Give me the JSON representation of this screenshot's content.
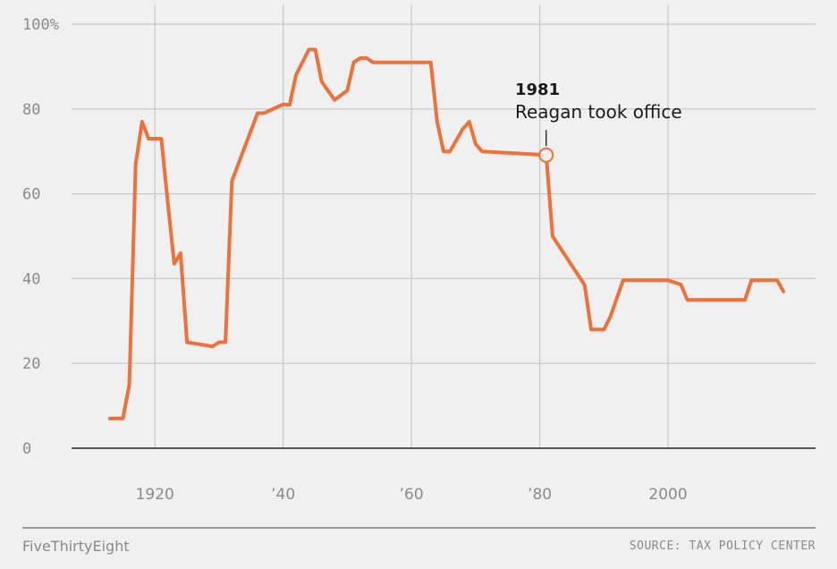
{
  "chart_data": {
    "type": "line",
    "title": "",
    "xlabel": "",
    "ylabel": "",
    "xlim": [
      1907,
      2023
    ],
    "ylim": [
      0,
      100
    ],
    "y_ticks": [
      0,
      20,
      40,
      60,
      80,
      100
    ],
    "y_tick_labels": [
      "0",
      "20",
      "40",
      "60",
      "80",
      "100%"
    ],
    "x_ticks": [
      1920,
      1940,
      1960,
      1980,
      2000
    ],
    "x_tick_labels": [
      "1920",
      "’40",
      "’60",
      "’80",
      "2000"
    ],
    "grid": true,
    "series": [
      {
        "color": "#ed713a",
        "x": [
          1913,
          1915,
          1916,
          1917,
          1918,
          1919,
          1921,
          1922,
          1923,
          1924,
          1925,
          1929,
          1930,
          1931,
          1932,
          1936,
          1937,
          1940,
          1941,
          1942,
          1944,
          1945,
          1946,
          1948,
          1950,
          1951,
          1952,
          1953,
          1954,
          1963,
          1964,
          1965,
          1966,
          1968,
          1969,
          1970,
          1971,
          1981,
          1982,
          1987,
          1988,
          1990,
          1991,
          1993,
          2000,
          2001,
          2002,
          2003,
          2012,
          2013,
          2017,
          2018
        ],
        "y": [
          7,
          7,
          15,
          67,
          77,
          73,
          73,
          58,
          43.5,
          46,
          25,
          24,
          25,
          25,
          63,
          79,
          79,
          81.1,
          81,
          88,
          94,
          94,
          86.45,
          82.13,
          84.36,
          91,
          92,
          92,
          91,
          91,
          77,
          70,
          70,
          75.25,
          77,
          71.75,
          70,
          69.13,
          50,
          38.5,
          28,
          28,
          31,
          39.6,
          39.6,
          39.1,
          38.6,
          35,
          35,
          39.6,
          39.6,
          37
        ]
      }
    ],
    "annotations": [
      {
        "x": 1981,
        "y": 69.13,
        "year": "1981",
        "text": "Reagan took office"
      }
    ]
  },
  "footer": {
    "brand": "FiveThirtyEight",
    "source": "SOURCE: TAX POLICY CENTER"
  }
}
